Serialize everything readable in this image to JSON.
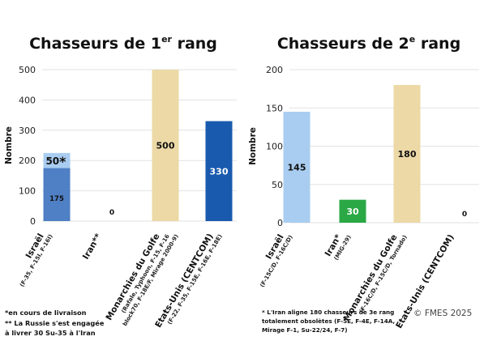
{
  "colors": {
    "light_blue": "#a9cdf0",
    "medium_blue": "#4f7fc4",
    "dark_blue": "#1a5aae",
    "beige": "#ecd9a6",
    "green": "#2aa845",
    "grid": "#e2e2e2"
  },
  "chart_data": [
    {
      "type": "bar",
      "title": "Chasseurs de 1",
      "title_sup": "er",
      "title_end": " rang",
      "ylabel": "Nombre",
      "ylim": [
        0,
        500
      ],
      "yticks": [
        "0",
        "100",
        "200",
        "300",
        "400",
        "500"
      ],
      "grid": true,
      "categories": [
        {
          "name": "Israël",
          "sub": "(F-35, F-15I, F-16I)"
        },
        {
          "name": "Iran**",
          "sub": ""
        },
        {
          "name": "Monarchies du Golfe",
          "sub": "(Rafale, Typhoon, F-15, F-16",
          "sub2": "block70, F-18E/F, Mirage 2000-9)"
        },
        {
          "name": "Etats-Unis (CENTCOM)",
          "sub": "(F-22, F-35, F-15E, F-16E, F-18E)"
        }
      ],
      "bars": [
        {
          "category": 0,
          "segments": [
            {
              "value": 175,
              "label": "175",
              "color": "medium_blue"
            },
            {
              "value": 50,
              "label": "50",
              "suffix": "*",
              "color": "light_blue"
            }
          ]
        },
        {
          "category": 1,
          "segments": [
            {
              "value": 0,
              "label": "0",
              "color": "light_blue"
            }
          ]
        },
        {
          "category": 2,
          "segments": [
            {
              "value": 500,
              "label": "500",
              "color": "beige"
            }
          ]
        },
        {
          "category": 3,
          "segments": [
            {
              "value": 330,
              "label": "330",
              "color": "dark_blue"
            }
          ]
        }
      ]
    },
    {
      "type": "bar",
      "title": "Chasseurs de 2",
      "title_sup": "e",
      "title_end": " rang",
      "ylabel": "Nombre",
      "ylim": [
        0,
        200
      ],
      "yticks": [
        "0",
        "50",
        "100",
        "150",
        "200"
      ],
      "grid": true,
      "categories": [
        {
          "name": "Israël",
          "sub": "(F-15C/D, F-16C/D)"
        },
        {
          "name": "Iran*",
          "sub": "(MIG-29)"
        },
        {
          "name": "Monarchies du Golfe",
          "sub": "(F-16C/D, F-15C/D, Tornado)"
        },
        {
          "name": "Etats-Unis (CENTCOM)",
          "sub": ""
        }
      ],
      "bars": [
        {
          "category": 0,
          "segments": [
            {
              "value": 145,
              "label": "145",
              "color": "light_blue"
            }
          ]
        },
        {
          "category": 1,
          "segments": [
            {
              "value": 30,
              "label": "30",
              "color": "green"
            }
          ]
        },
        {
          "category": 2,
          "segments": [
            {
              "value": 180,
              "label": "180",
              "color": "beige"
            }
          ]
        },
        {
          "category": 3,
          "segments": [
            {
              "value": 0,
              "label": "0",
              "color": "light_blue"
            }
          ]
        }
      ]
    }
  ],
  "notes": {
    "left_line1": "*en cours de livraison",
    "left_line2": "** La Russie s'est engagée",
    "left_line3": "à livrer 30 Su-35 à l'Iran",
    "right_line1": "* L'Iran aligne 180 chasseurs de 3e rang",
    "right_line2": "totalement obsolètes (F-5E, F-4E, F-14A,",
    "right_line3": "Mirage F-1, Su-22/24, F-7)",
    "credit": "© FMES 2025"
  }
}
